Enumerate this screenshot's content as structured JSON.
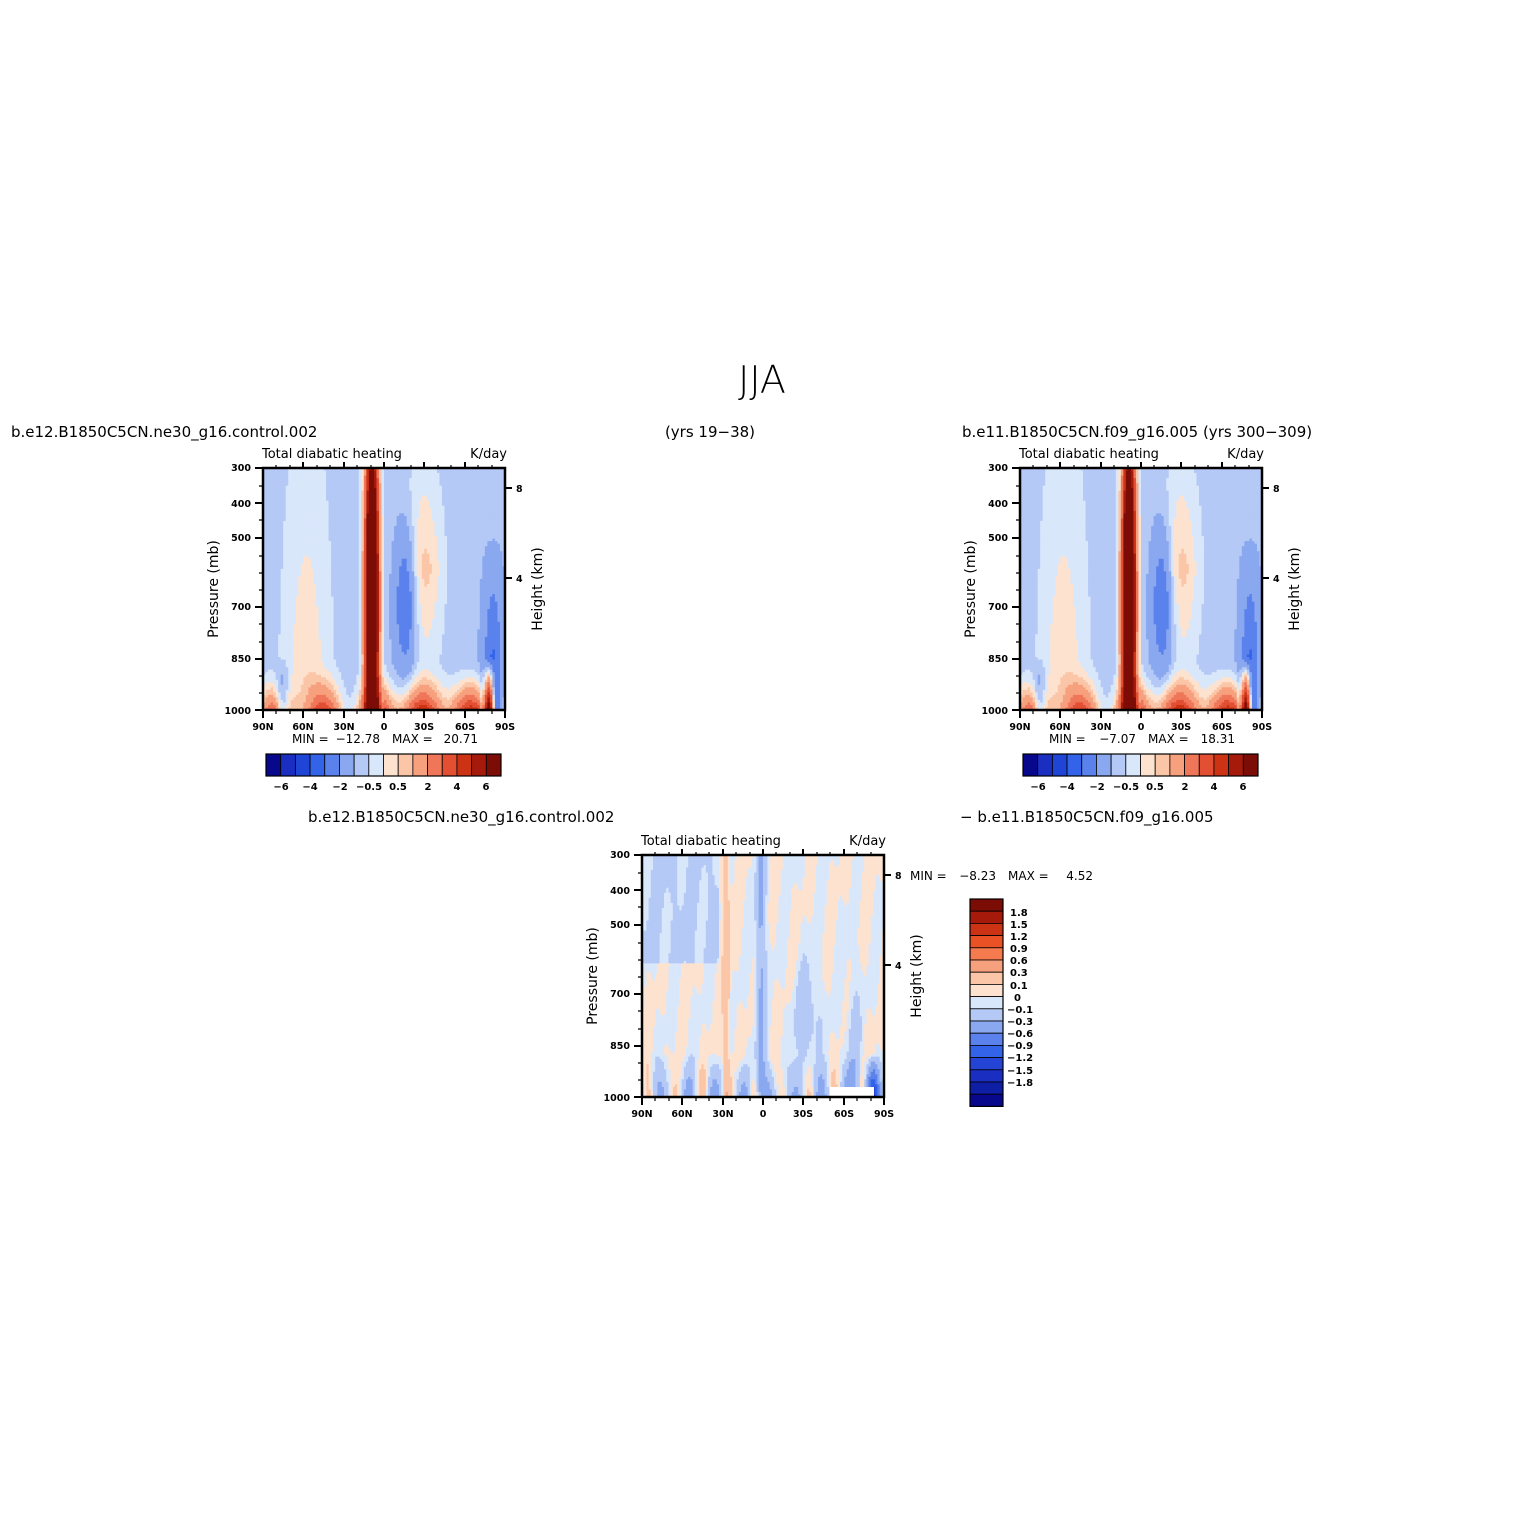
{
  "figure": {
    "title": "JJA",
    "left_case": "b.e12.B1850C5CN.ne30_g16.control.002",
    "left_years": "(yrs 19−38)",
    "right_case": "b.e11.B1850C5CN.f09_g16.005 (yrs 300−309)",
    "diff_case_a": "b.e12.B1850C5CN.ne30_g16.control.002",
    "diff_case_b": "− b.e11.B1850C5CN.f09_g16.005"
  },
  "colors": {
    "main_scale": [
      "#08088c",
      "#1a2ec2",
      "#1f45d6",
      "#3363e8",
      "#5b82ec",
      "#8aa8ef",
      "#b4c9f5",
      "#d9e7fb",
      "#fde3cf",
      "#fbc6a8",
      "#f7a07e",
      "#f0765a",
      "#e24f33",
      "#cc3214",
      "#a61a0b",
      "#7c0c06"
    ],
    "diff_scale": [
      "#08088c",
      "#0f1fa5",
      "#1a2ec2",
      "#2444d6",
      "#3363e8",
      "#5b82ec",
      "#8aa8ef",
      "#b4c9f5",
      "#d9e7fb",
      "#fde3cf",
      "#fbc6a8",
      "#f7a07e",
      "#f57a4d",
      "#ea5125",
      "#cc3214",
      "#a61a0b",
      "#7c0c06"
    ]
  },
  "chart_data": [
    {
      "type": "heatmap",
      "id": "left-panel",
      "title_left": "Total diabatic heating",
      "title_right": "K/day",
      "ylabel": "Pressure (mb)",
      "ylabel_right": "Height (km)",
      "x_ticks": [
        "90N",
        "60N",
        "30N",
        "0",
        "30S",
        "60S",
        "90S"
      ],
      "y_ticks": [
        "300",
        "400",
        "500",
        "700",
        "850",
        "1000"
      ],
      "y_ticks_right": [
        "8",
        "4"
      ],
      "xlim": [
        90,
        -90
      ],
      "ylim": [
        1000,
        300
      ],
      "min_label": "MIN =",
      "min_value": "−12.78",
      "max_label": "MAX =",
      "max_value": "20.71",
      "colorbar_labels": [
        "−6",
        "−4",
        "−2",
        "−0.5",
        "0.5",
        "2",
        "4",
        "6"
      ]
    },
    {
      "type": "heatmap",
      "id": "right-panel",
      "title_left": "Total diabatic heating",
      "title_right": "K/day",
      "ylabel": "Pressure (mb)",
      "ylabel_right": "Height (km)",
      "x_ticks": [
        "90N",
        "60N",
        "30N",
        "0",
        "30S",
        "60S",
        "90S"
      ],
      "y_ticks": [
        "300",
        "400",
        "500",
        "700",
        "850",
        "1000"
      ],
      "y_ticks_right": [
        "8",
        "4"
      ],
      "xlim": [
        90,
        -90
      ],
      "ylim": [
        1000,
        300
      ],
      "min_label": "MIN =",
      "min_value": "−7.07",
      "max_label": "MAX =",
      "max_value": "18.31",
      "colorbar_labels": [
        "−6",
        "−4",
        "−2",
        "−0.5",
        "0.5",
        "2",
        "4",
        "6"
      ]
    },
    {
      "type": "heatmap",
      "id": "diff-panel",
      "title_left": "Total diabatic heating",
      "title_right": "K/day",
      "ylabel": "Pressure (mb)",
      "ylabel_right": "Height (km)",
      "x_ticks": [
        "90N",
        "60N",
        "30N",
        "0",
        "30S",
        "60S",
        "90S"
      ],
      "y_ticks": [
        "300",
        "400",
        "500",
        "700",
        "850",
        "1000"
      ],
      "y_ticks_right": [
        "8",
        "4"
      ],
      "xlim": [
        90,
        -90
      ],
      "ylim": [
        1000,
        300
      ],
      "min_label": "MIN =",
      "min_value": "−8.23",
      "max_label": "MAX =",
      "max_value": "4.52",
      "colorbar_labels": [
        "1.8",
        "1.5",
        "1.2",
        "0.9",
        "0.6",
        "0.3",
        "0.1",
        "0",
        "−0.1",
        "−0.3",
        "−0.6",
        "−0.9",
        "−1.2",
        "−1.5",
        "−1.8"
      ]
    }
  ]
}
